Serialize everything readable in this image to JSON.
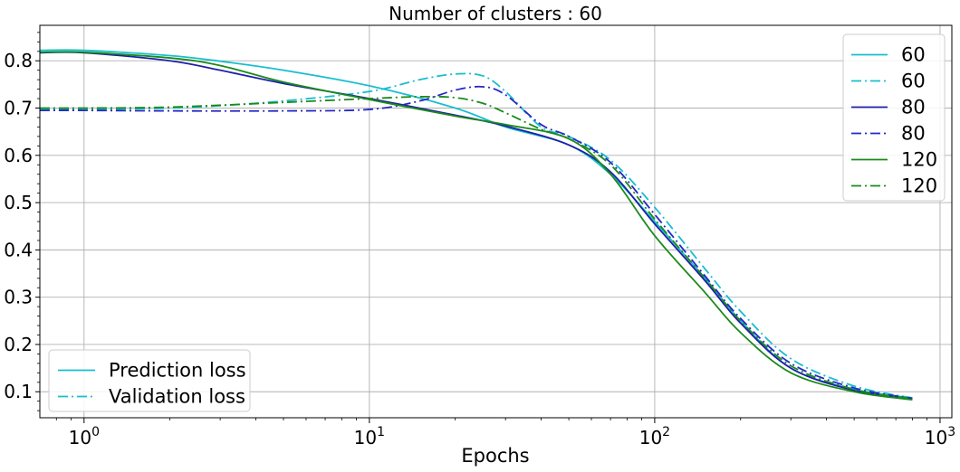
{
  "chart_data": {
    "type": "line",
    "title": "Number of clusters : 60",
    "xlabel": "Epochs",
    "ylabel": "",
    "xscale": "log",
    "xlim": [
      0.7,
      1100
    ],
    "ylim": [
      0.045,
      0.875
    ],
    "grid": true,
    "x_ticks": [
      {
        "value": 1,
        "base": "10",
        "exp": "0"
      },
      {
        "value": 10,
        "base": "10",
        "exp": "1"
      },
      {
        "value": 100,
        "base": "10",
        "exp": "2"
      },
      {
        "value": 1000,
        "base": "10",
        "exp": "3"
      }
    ],
    "y_ticks": [
      {
        "value": 0.1,
        "label": "0.1"
      },
      {
        "value": 0.2,
        "label": "0.2"
      },
      {
        "value": 0.3,
        "label": "0.3"
      },
      {
        "value": 0.4,
        "label": "0.4"
      },
      {
        "value": 0.5,
        "label": "0.5"
      },
      {
        "value": 0.6,
        "label": "0.6"
      },
      {
        "value": 0.7,
        "label": "0.7"
      },
      {
        "value": 0.8,
        "label": "0.8"
      }
    ],
    "series": [
      {
        "name": "60",
        "color": "#17becf",
        "style": "solid",
        "x": [
          0.7,
          1,
          2,
          3,
          5,
          10,
          20,
          30,
          50,
          70,
          100,
          150,
          200,
          300,
          500,
          800
        ],
        "y": [
          0.822,
          0.822,
          0.811,
          0.799,
          0.78,
          0.747,
          0.7,
          0.66,
          0.622,
          0.56,
          0.46,
          0.34,
          0.25,
          0.15,
          0.105,
          0.087
        ]
      },
      {
        "name": "60",
        "color": "#17becf",
        "style": "dashdot",
        "x": [
          0.7,
          1,
          2,
          3,
          5,
          10,
          15,
          20,
          25,
          30,
          40,
          50,
          70,
          100,
          150,
          200,
          300,
          500,
          800
        ],
        "y": [
          0.697,
          0.697,
          0.7,
          0.705,
          0.715,
          0.735,
          0.76,
          0.772,
          0.768,
          0.735,
          0.66,
          0.64,
          0.59,
          0.49,
          0.36,
          0.27,
          0.17,
          0.112,
          0.087
        ]
      },
      {
        "name": "80",
        "color": "#1f1fa8",
        "style": "solid",
        "x": [
          0.7,
          1,
          2,
          3,
          5,
          10,
          20,
          30,
          50,
          70,
          100,
          150,
          200,
          300,
          500,
          800
        ],
        "y": [
          0.817,
          0.817,
          0.8,
          0.78,
          0.752,
          0.72,
          0.685,
          0.662,
          0.622,
          0.565,
          0.455,
          0.335,
          0.245,
          0.15,
          0.103,
          0.085
        ]
      },
      {
        "name": "80",
        "color": "#2626c8",
        "style": "dashdot",
        "x": [
          0.7,
          1,
          2,
          5,
          10,
          15,
          20,
          25,
          30,
          40,
          50,
          70,
          100,
          150,
          200,
          300,
          500,
          800
        ],
        "y": [
          0.695,
          0.695,
          0.694,
          0.694,
          0.697,
          0.715,
          0.738,
          0.745,
          0.728,
          0.665,
          0.64,
          0.585,
          0.475,
          0.345,
          0.255,
          0.16,
          0.108,
          0.086
        ]
      },
      {
        "name": "120",
        "color": "#1a8a1a",
        "style": "solid",
        "x": [
          0.7,
          1,
          2,
          3,
          5,
          10,
          20,
          30,
          50,
          70,
          100,
          150,
          200,
          300,
          500,
          800
        ],
        "y": [
          0.818,
          0.818,
          0.806,
          0.79,
          0.755,
          0.718,
          0.683,
          0.665,
          0.635,
          0.56,
          0.43,
          0.31,
          0.225,
          0.14,
          0.1,
          0.083
        ]
      },
      {
        "name": "120",
        "color": "#1a8a1a",
        "style": "dashdot",
        "x": [
          0.7,
          1,
          2,
          5,
          10,
          15,
          20,
          25,
          30,
          40,
          50,
          70,
          100,
          150,
          200,
          300,
          500,
          800
        ],
        "y": [
          0.7,
          0.7,
          0.702,
          0.712,
          0.72,
          0.724,
          0.722,
          0.71,
          0.69,
          0.655,
          0.635,
          0.58,
          0.465,
          0.34,
          0.25,
          0.155,
          0.105,
          0.085
        ]
      }
    ],
    "legend_series": {
      "placement": "upper right",
      "entries": [
        {
          "label": "60",
          "color": "#17becf",
          "style": "solid"
        },
        {
          "label": "60",
          "color": "#17becf",
          "style": "dashdot"
        },
        {
          "label": "80",
          "color": "#1f1fa8",
          "style": "solid"
        },
        {
          "label": "80",
          "color": "#2626c8",
          "style": "dashdot"
        },
        {
          "label": "120",
          "color": "#1a8a1a",
          "style": "solid"
        },
        {
          "label": "120",
          "color": "#1a8a1a",
          "style": "dashdot"
        }
      ]
    },
    "legend_linestyle": {
      "placement": "lower left",
      "entries": [
        {
          "label": "Prediction loss",
          "color": "#17becf",
          "style": "solid"
        },
        {
          "label": "Validation loss",
          "color": "#17becf",
          "style": "dashdot"
        }
      ]
    }
  }
}
